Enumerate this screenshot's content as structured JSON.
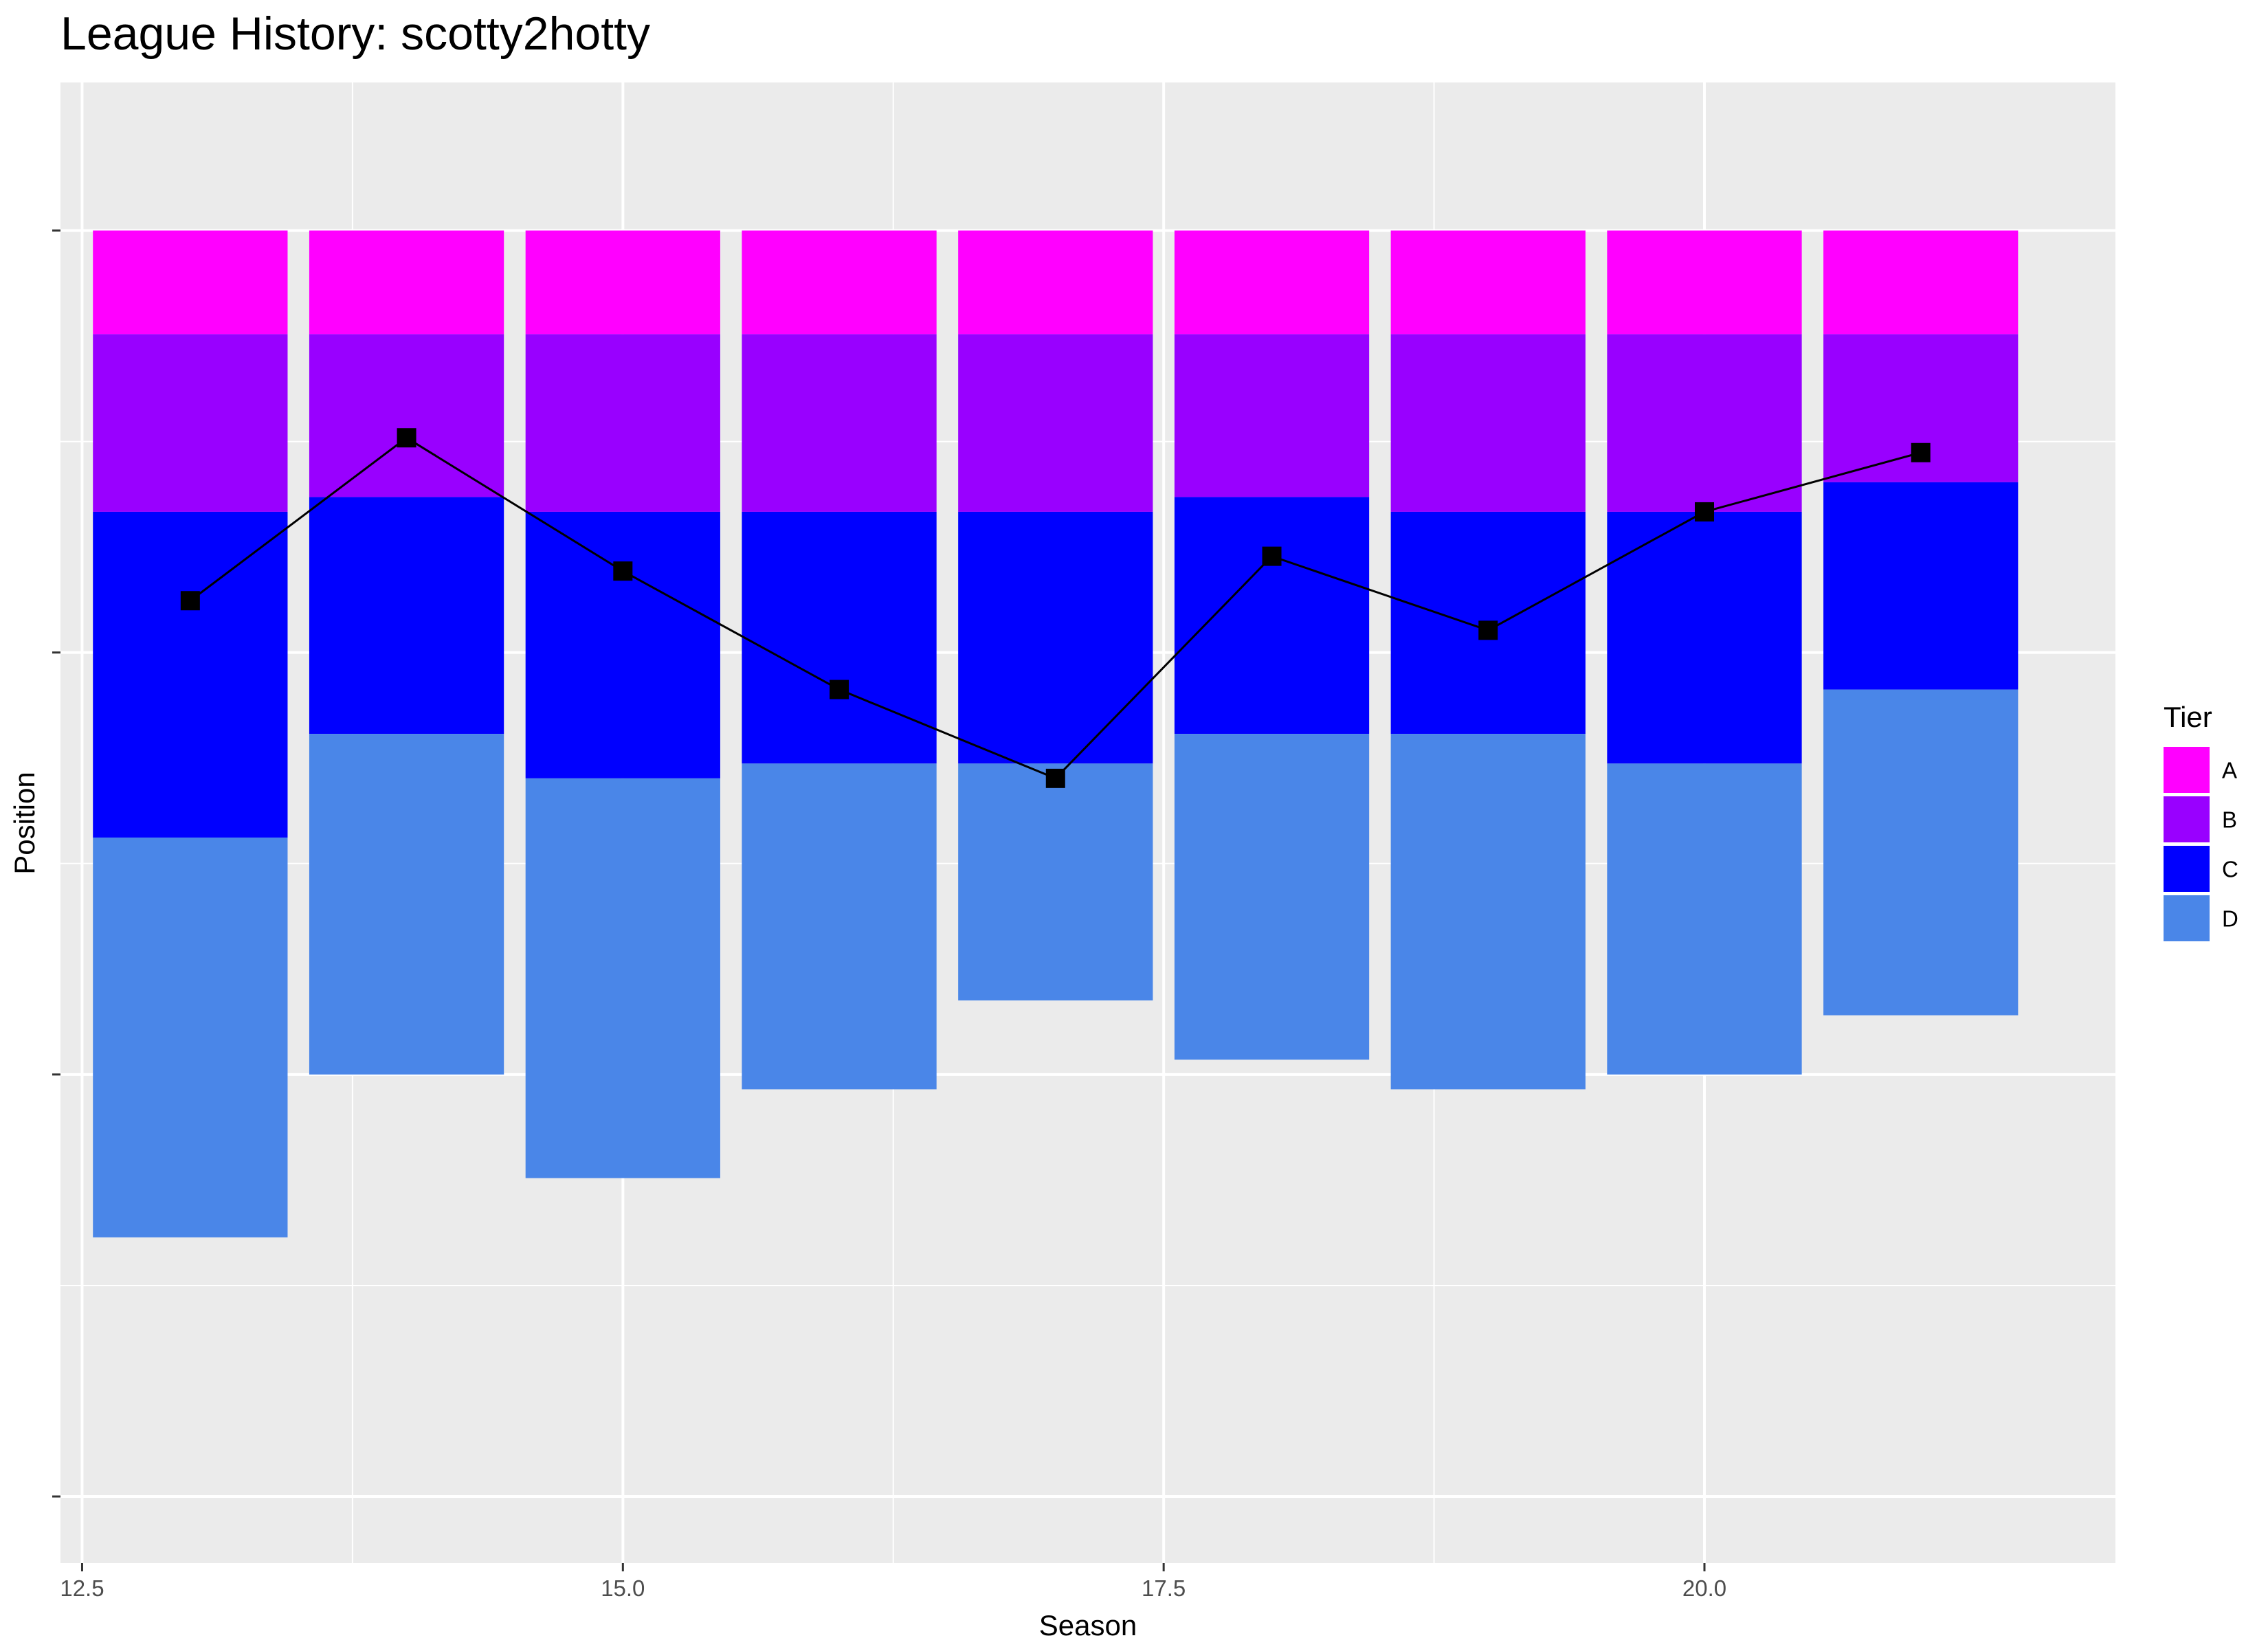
{
  "chart_data": {
    "type": "bar",
    "title": "League History: scotty2hotty",
    "xlabel": "Season",
    "ylabel": "Position",
    "xlim": [
      12.4,
      21.9
    ],
    "ylim": [
      0,
      1
    ],
    "x_ticks": [
      12.5,
      15.0,
      17.5,
      20.0
    ],
    "x_tick_labels": [
      "12.5",
      "15.0",
      "17.5",
      "20.0"
    ],
    "y_tick_labels": [],
    "grid": true,
    "legend": {
      "title": "Tier",
      "position": "right"
    },
    "tiers": [
      {
        "name": "A",
        "color": "#FF00FF"
      },
      {
        "name": "B",
        "color": "#9900FF"
      },
      {
        "name": "C",
        "color": "#0000FF"
      },
      {
        "name": "D",
        "color": "#4A86E8"
      }
    ],
    "seasons": [
      {
        "season": 13,
        "boundaries": [
          0.1,
          0.17,
          0.29,
          0.51,
          0.78
        ],
        "position": 0.35
      },
      {
        "season": 14,
        "boundaries": [
          0.1,
          0.17,
          0.28,
          0.44,
          0.67
        ],
        "position": 0.24
      },
      {
        "season": 15,
        "boundaries": [
          0.1,
          0.17,
          0.29,
          0.47,
          0.74
        ],
        "position": 0.33
      },
      {
        "season": 16,
        "boundaries": [
          0.1,
          0.17,
          0.29,
          0.46,
          0.68
        ],
        "position": 0.41
      },
      {
        "season": 17,
        "boundaries": [
          0.1,
          0.17,
          0.29,
          0.46,
          0.62
        ],
        "position": 0.47
      },
      {
        "season": 18,
        "boundaries": [
          0.1,
          0.17,
          0.28,
          0.44,
          0.66
        ],
        "position": 0.32
      },
      {
        "season": 19,
        "boundaries": [
          0.1,
          0.17,
          0.29,
          0.44,
          0.68
        ],
        "position": 0.37
      },
      {
        "season": 20,
        "boundaries": [
          0.1,
          0.17,
          0.29,
          0.46,
          0.67
        ],
        "position": 0.29
      },
      {
        "season": 21,
        "boundaries": [
          0.1,
          0.17,
          0.27,
          0.41,
          0.63
        ],
        "position": 0.25
      }
    ]
  }
}
